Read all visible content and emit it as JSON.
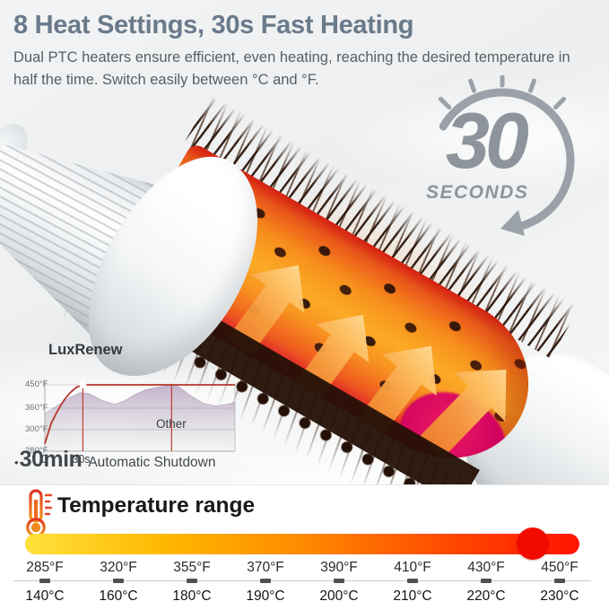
{
  "header": {
    "title": "8 Heat Settings, 30s Fast Heating",
    "subtitle": "Dual PTC heaters ensure efficient, even heating, reaching the desired temperature in half the time. Switch easily between °C and °F."
  },
  "timer": {
    "value": "30",
    "unit": "SECONDS"
  },
  "shutdown": {
    "bullet": "•",
    "value": "30min",
    "label": "Automatic Shutdown"
  },
  "chart_data": {
    "type": "line",
    "title": "LuxRenew",
    "other_label": "Other",
    "xlim": [
      0,
      150
    ],
    "x_ticks": [
      {
        "t": 0,
        "label": "0"
      },
      {
        "t": 30,
        "label": "30s"
      }
    ],
    "y_ticks": [
      {
        "f": 450,
        "label": "450°F"
      },
      {
        "f": 360,
        "label": "360°F"
      },
      {
        "f": 300,
        "label": "300°F"
      },
      {
        "f": 280,
        "label": "280°F"
      }
    ],
    "series": [
      {
        "name": "LuxRenew",
        "color": "#b5372b",
        "points": [
          [
            0,
            287
          ],
          [
            5,
            318
          ],
          [
            10,
            352
          ],
          [
            15,
            390
          ],
          [
            20,
            420
          ],
          [
            25,
            441
          ],
          [
            30,
            450
          ],
          [
            150,
            450
          ]
        ]
      },
      {
        "name": "Other",
        "fill_top": "rgba(153,118,168,0.55)",
        "fill_bottom": "rgba(150,150,155,0.06)",
        "points": [
          [
            0,
            345
          ],
          [
            10,
            370
          ],
          [
            20,
            402
          ],
          [
            28,
            420
          ],
          [
            35,
            416
          ],
          [
            45,
            390
          ],
          [
            55,
            375
          ],
          [
            62,
            386
          ],
          [
            72,
            415
          ],
          [
            80,
            432
          ],
          [
            95,
            446
          ],
          [
            100,
            453
          ],
          [
            105,
            444
          ],
          [
            115,
            408
          ],
          [
            125,
            378
          ],
          [
            135,
            368
          ],
          [
            145,
            376
          ],
          [
            150,
            381
          ]
        ]
      }
    ],
    "vlines": [
      30,
      100
    ],
    "grid_on": true
  },
  "temperature": {
    "heading": "Temperature range",
    "bar_colors": [
      "#ffe13e",
      "#ffb800",
      "#ff8a00",
      "#ff4d00",
      "#ff1300"
    ],
    "knob_color": "#f20c00",
    "points": [
      {
        "f": "285°F",
        "c": "140°C"
      },
      {
        "f": "320°F",
        "c": "160°C"
      },
      {
        "f": "355°F",
        "c": "180°C"
      },
      {
        "f": "370°F",
        "c": "190°C"
      },
      {
        "f": "390°F",
        "c": "200°C"
      },
      {
        "f": "410°F",
        "c": "210°C"
      },
      {
        "f": "430°F",
        "c": "220°C"
      },
      {
        "f": "450°F",
        "c": "230°C"
      }
    ]
  },
  "icons": {
    "clock": "clock-arrow-icon",
    "thermometer": "thermometer-icon"
  }
}
